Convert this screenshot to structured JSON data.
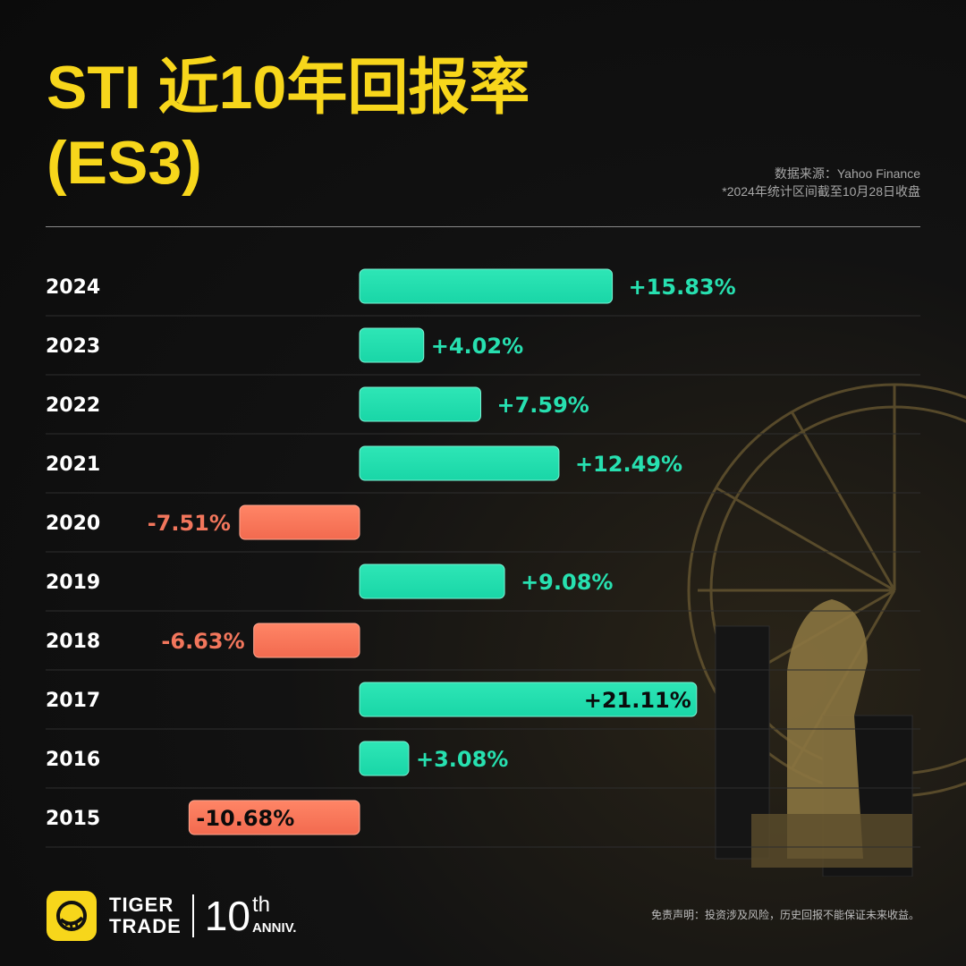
{
  "header": {
    "title_line1": "STI 近10年回报率",
    "title_line2": "(ES3)",
    "source": "数据来源：Yahoo Finance",
    "note": "*2024年统计区间截至10月28日收盘"
  },
  "chart_data": {
    "type": "bar",
    "orientation": "horizontal",
    "title": "STI 近10年回报率 (ES3)",
    "categories": [
      "2024",
      "2023",
      "2022",
      "2021",
      "2020",
      "2019",
      "2018",
      "2017",
      "2016",
      "2015"
    ],
    "values": [
      15.83,
      4.02,
      7.59,
      12.49,
      -7.51,
      9.08,
      -6.63,
      21.11,
      3.08,
      -10.68
    ],
    "labels": [
      "+15.83%",
      "+4.02%",
      "+7.59%",
      "+12.49%",
      "-7.51%",
      "+9.08%",
      "-6.63%",
      "+21.11%",
      "+3.08%",
      "-10.68%"
    ],
    "unit": "%",
    "grid": false,
    "colors": {
      "positive": "#19d6a7",
      "negative": "#f26a4f",
      "positive_label": "#27e0b0",
      "negative_label": "#f2765c"
    }
  },
  "footer": {
    "brand_line1": "TIGER",
    "brand_line2": "TRADE",
    "anniv_number": "10",
    "anniv_suffix": "th",
    "anniv_word": "ANNIV.",
    "disclaimer": "免责声明：投资涉及风险，历史回报不能保证未来收益。",
    "logo_icon": "tiger-stripe-icon",
    "accent": "#f7d61b"
  }
}
